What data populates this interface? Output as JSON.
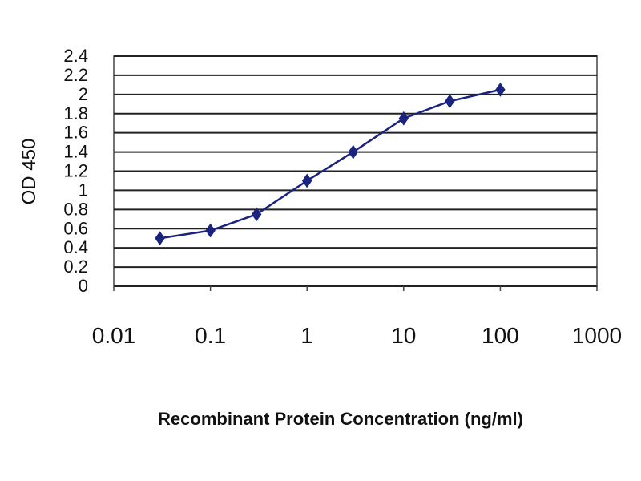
{
  "chart_data": {
    "type": "line",
    "title": "",
    "xlabel": "Recombinant Protein Concentration (ng/ml)",
    "ylabel": "OD 450",
    "x_scale": "log",
    "xlim": [
      0.01,
      1000
    ],
    "ylim": [
      0,
      2.4
    ],
    "x_ticks": [
      "0.01",
      "0.1",
      "1",
      "10",
      "100",
      "1000"
    ],
    "y_ticks": [
      "0",
      "0.2",
      "0.4",
      "0.6",
      "0.8",
      "1",
      "1.2",
      "1.4",
      "1.6",
      "1.8",
      "2",
      "2.2",
      "2.4"
    ],
    "grid": "horizontal",
    "legend": "none",
    "series": [
      {
        "color": "#1a237e",
        "marker": "diamond",
        "points": [
          {
            "x": 0.03,
            "y": 0.5
          },
          {
            "x": 0.1,
            "y": 0.58
          },
          {
            "x": 0.3,
            "y": 0.75
          },
          {
            "x": 1,
            "y": 1.1
          },
          {
            "x": 3,
            "y": 1.4
          },
          {
            "x": 10,
            "y": 1.75
          },
          {
            "x": 30,
            "y": 1.93
          },
          {
            "x": 100,
            "y": 2.05
          }
        ]
      }
    ]
  }
}
